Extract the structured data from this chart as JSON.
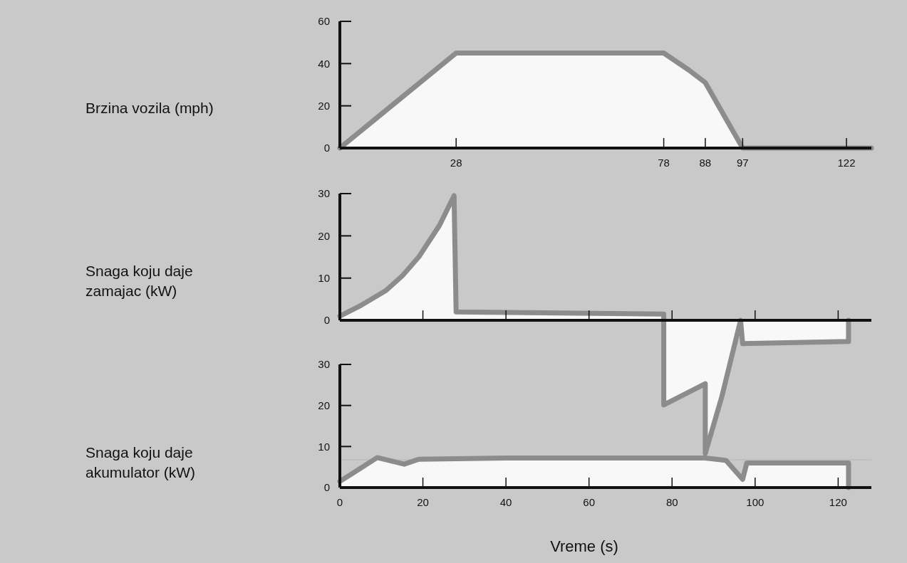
{
  "chart_data": [
    {
      "type": "area",
      "ylabel": "Brzina vozila (mph)",
      "xlim": [
        0,
        128
      ],
      "xticks": [
        28,
        78,
        88,
        97,
        122
      ],
      "ylim": [
        0,
        60
      ],
      "yticks": [
        0,
        20,
        40,
        60
      ],
      "series": [
        {
          "color": "#8c8c8c",
          "x": [
            0,
            28,
            78,
            84,
            88,
            97,
            128
          ],
          "values": [
            0,
            45,
            45,
            37,
            31,
            0,
            0
          ]
        }
      ]
    },
    {
      "type": "area",
      "ylabel": "Snaga koju daje\nzamajac (kW)",
      "xlim": [
        0,
        128
      ],
      "xticks": [
        {
          "value": 20,
          "label": null
        },
        {
          "value": 40,
          "label": null
        },
        {
          "value": 60,
          "label": null
        },
        {
          "value": 80,
          "label": null
        },
        {
          "value": 100,
          "label": null
        },
        {
          "value": 120,
          "label": null
        }
      ],
      "ylim": [
        -33,
        30
      ],
      "yticks": [
        0,
        10,
        20,
        30
      ],
      "tick_labels": "y",
      "series": [
        {
          "color": "#8c8c8c",
          "x": [
            0,
            5,
            11,
            15,
            19,
            24,
            27.5,
            28,
            78,
            78,
            88,
            88,
            92,
            96.5,
            97,
            122.5,
            122.5
          ],
          "values": [
            1,
            3.5,
            7,
            10.5,
            15,
            22.5,
            29.5,
            2,
            1.5,
            -20,
            -15,
            -31.5,
            -18,
            0,
            -5.5,
            -5,
            0
          ]
        }
      ]
    },
    {
      "type": "area",
      "ylabel": "Snaga koju daje\nakumulator (kW)",
      "xlabel": "Vreme (s)",
      "xlim": [
        0,
        128
      ],
      "xticks": [
        0,
        20,
        40,
        60,
        80,
        100,
        120
      ],
      "ylim": [
        0,
        30
      ],
      "yticks": [
        0,
        10,
        20,
        30
      ],
      "series": [
        {
          "color": "#8c8c8c",
          "x": [
            0,
            9,
            15.5,
            19,
            40,
            88,
            93,
            97,
            98,
            122.5,
            122.5
          ],
          "values": [
            1.5,
            7.3,
            5.7,
            6.9,
            7.2,
            7.2,
            6.6,
            2,
            6,
            6,
            0
          ]
        }
      ]
    }
  ]
}
